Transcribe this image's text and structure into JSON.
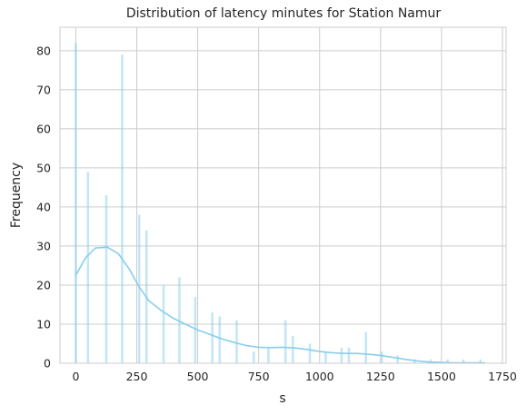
{
  "chart_data": {
    "type": "bar",
    "title": "Distribution of latency minutes for Station Namur",
    "xlabel": "s",
    "ylabel": "Frequency",
    "xlim": [
      -65,
      1765
    ],
    "ylim": [
      0,
      86
    ],
    "xticks": [
      0,
      250,
      500,
      750,
      1000,
      1250,
      1500,
      1750
    ],
    "yticks": [
      0,
      10,
      20,
      30,
      40,
      50,
      60,
      70,
      80
    ],
    "grid": true,
    "bar_color": "#87ceeb",
    "line_color": "#87ceeb",
    "bins": [
      {
        "x": 0,
        "value": 82
      },
      {
        "x": 50,
        "value": 49
      },
      {
        "x": 125,
        "value": 43
      },
      {
        "x": 190,
        "value": 79
      },
      {
        "x": 260,
        "value": 38
      },
      {
        "x": 290,
        "value": 34
      },
      {
        "x": 360,
        "value": 20
      },
      {
        "x": 425,
        "value": 22
      },
      {
        "x": 490,
        "value": 17
      },
      {
        "x": 560,
        "value": 13
      },
      {
        "x": 590,
        "value": 12
      },
      {
        "x": 660,
        "value": 11
      },
      {
        "x": 730,
        "value": 3
      },
      {
        "x": 790,
        "value": 4
      },
      {
        "x": 860,
        "value": 11
      },
      {
        "x": 890,
        "value": 7
      },
      {
        "x": 960,
        "value": 5
      },
      {
        "x": 1025,
        "value": 3
      },
      {
        "x": 1090,
        "value": 4
      },
      {
        "x": 1120,
        "value": 4
      },
      {
        "x": 1190,
        "value": 8
      },
      {
        "x": 1255,
        "value": 3
      },
      {
        "x": 1320,
        "value": 2
      },
      {
        "x": 1390,
        "value": 1
      },
      {
        "x": 1455,
        "value": 1
      },
      {
        "x": 1525,
        "value": 1
      },
      {
        "x": 1590,
        "value": 1
      },
      {
        "x": 1660,
        "value": 1
      }
    ],
    "bin_width": 28,
    "kde": [
      [
        0,
        22.5
      ],
      [
        40,
        27
      ],
      [
        80,
        29.5
      ],
      [
        130,
        29.7
      ],
      [
        175,
        28
      ],
      [
        220,
        24
      ],
      [
        260,
        19.5
      ],
      [
        300,
        16
      ],
      [
        350,
        13.5
      ],
      [
        400,
        11.5
      ],
      [
        450,
        10
      ],
      [
        500,
        8.5
      ],
      [
        550,
        7.4
      ],
      [
        600,
        6.2
      ],
      [
        650,
        5.3
      ],
      [
        700,
        4.5
      ],
      [
        750,
        4.1
      ],
      [
        800,
        4.0
      ],
      [
        850,
        4.1
      ],
      [
        900,
        3.9
      ],
      [
        950,
        3.5
      ],
      [
        1000,
        3.0
      ],
      [
        1050,
        2.7
      ],
      [
        1100,
        2.5
      ],
      [
        1150,
        2.5
      ],
      [
        1200,
        2.3
      ],
      [
        1250,
        2.0
      ],
      [
        1300,
        1.5
      ],
      [
        1350,
        1.0
      ],
      [
        1400,
        0.6
      ],
      [
        1450,
        0.3
      ],
      [
        1500,
        0.2
      ],
      [
        1550,
        0.1
      ],
      [
        1600,
        0.1
      ],
      [
        1650,
        0.1
      ],
      [
        1680,
        0.1
      ]
    ]
  }
}
